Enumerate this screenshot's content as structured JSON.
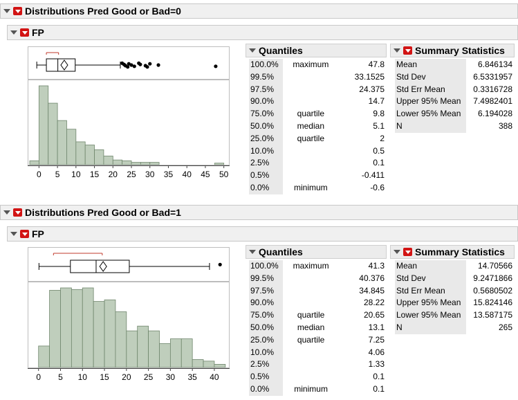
{
  "sections": [
    {
      "header": "Distributions Pred Good or Bad=0",
      "variable": "FP",
      "quantiles_title": "Quantiles",
      "summary_title": "Summary Statistics",
      "quantiles": [
        {
          "pct": "100.0%",
          "label": "maximum",
          "value": "47.8"
        },
        {
          "pct": "99.5%",
          "label": "",
          "value": "33.1525"
        },
        {
          "pct": "97.5%",
          "label": "",
          "value": "24.375"
        },
        {
          "pct": "90.0%",
          "label": "",
          "value": "14.7"
        },
        {
          "pct": "75.0%",
          "label": "quartile",
          "value": "9.8"
        },
        {
          "pct": "50.0%",
          "label": "median",
          "value": "5.1"
        },
        {
          "pct": "25.0%",
          "label": "quartile",
          "value": "2"
        },
        {
          "pct": "10.0%",
          "label": "",
          "value": "0.5"
        },
        {
          "pct": "2.5%",
          "label": "",
          "value": "0.1"
        },
        {
          "pct": "0.5%",
          "label": "",
          "value": "-0.411"
        },
        {
          "pct": "0.0%",
          "label": "minimum",
          "value": "-0.6"
        }
      ],
      "summary": [
        {
          "label": "Mean",
          "value": "6.846134"
        },
        {
          "label": "Std Dev",
          "value": "6.5331957"
        },
        {
          "label": "Std Err Mean",
          "value": "0.3316728"
        },
        {
          "label": "Upper 95% Mean",
          "value": "7.4982401"
        },
        {
          "label": "Lower 95% Mean",
          "value": "6.194028"
        },
        {
          "label": "N",
          "value": "388"
        }
      ],
      "chart_data": {
        "type": "bar",
        "xlim": [
          -2.5,
          51
        ],
        "ticks": [
          0,
          5,
          10,
          15,
          20,
          25,
          30,
          35,
          40,
          45,
          50
        ],
        "bins": [
          {
            "x0": -2.5,
            "x1": 0,
            "h": 0.05
          },
          {
            "x0": 0,
            "x1": 2.5,
            "h": 1.0
          },
          {
            "x0": 2.5,
            "x1": 5,
            "h": 0.78
          },
          {
            "x0": 5,
            "x1": 7.5,
            "h": 0.56
          },
          {
            "x0": 7.5,
            "x1": 10,
            "h": 0.45
          },
          {
            "x0": 10,
            "x1": 12.5,
            "h": 0.29
          },
          {
            "x0": 12.5,
            "x1": 15,
            "h": 0.25
          },
          {
            "x0": 15,
            "x1": 17.5,
            "h": 0.19
          },
          {
            "x0": 17.5,
            "x1": 20,
            "h": 0.11
          },
          {
            "x0": 20,
            "x1": 22.5,
            "h": 0.06
          },
          {
            "x0": 22.5,
            "x1": 25,
            "h": 0.05
          },
          {
            "x0": 25,
            "x1": 27.5,
            "h": 0.03
          },
          {
            "x0": 27.5,
            "x1": 30,
            "h": 0.03
          },
          {
            "x0": 30,
            "x1": 32.5,
            "h": 0.03
          },
          {
            "x0": 47.5,
            "x1": 50,
            "h": 0.02
          }
        ],
        "box": {
          "whisker_lo": -0.6,
          "q1": 2,
          "median": 5.1,
          "q3": 9.8,
          "whisker_hi": 22,
          "mean": 6.846134,
          "bracket": [
            2,
            5.3
          ]
        },
        "outliers": [
          22.5,
          23,
          23.4,
          24,
          24.3,
          25,
          25.8,
          27,
          27.4,
          28.8,
          29.3,
          30,
          32.3,
          47.8
        ]
      }
    },
    {
      "header": "Distributions Pred Good or Bad=1",
      "variable": "FP",
      "quantiles_title": "Quantiles",
      "summary_title": "Summary Statistics",
      "quantiles": [
        {
          "pct": "100.0%",
          "label": "maximum",
          "value": "41.3"
        },
        {
          "pct": "99.5%",
          "label": "",
          "value": "40.376"
        },
        {
          "pct": "97.5%",
          "label": "",
          "value": "34.845"
        },
        {
          "pct": "90.0%",
          "label": "",
          "value": "28.22"
        },
        {
          "pct": "75.0%",
          "label": "quartile",
          "value": "20.65"
        },
        {
          "pct": "50.0%",
          "label": "median",
          "value": "13.1"
        },
        {
          "pct": "25.0%",
          "label": "quartile",
          "value": "7.25"
        },
        {
          "pct": "10.0%",
          "label": "",
          "value": "4.06"
        },
        {
          "pct": "2.5%",
          "label": "",
          "value": "1.33"
        },
        {
          "pct": "0.5%",
          "label": "",
          "value": "0.1"
        },
        {
          "pct": "0.0%",
          "label": "minimum",
          "value": "0.1"
        }
      ],
      "summary": [
        {
          "label": "Mean",
          "value": "14.70566"
        },
        {
          "label": "Std Dev",
          "value": "9.2471866"
        },
        {
          "label": "Std Err Mean",
          "value": "0.5680502"
        },
        {
          "label": "Upper 95% Mean",
          "value": "15.824146"
        },
        {
          "label": "Lower 95% Mean",
          "value": "13.587175"
        },
        {
          "label": "N",
          "value": "265"
        }
      ],
      "chart_data": {
        "type": "bar",
        "xlim": [
          -2,
          43
        ],
        "ticks": [
          0,
          5,
          10,
          15,
          20,
          25,
          30,
          35,
          40
        ],
        "bins": [
          {
            "x0": 0,
            "x1": 2.5,
            "h": 0.27
          },
          {
            "x0": 2.5,
            "x1": 5,
            "h": 0.97
          },
          {
            "x0": 5,
            "x1": 7.5,
            "h": 1.0
          },
          {
            "x0": 7.5,
            "x1": 10,
            "h": 0.98
          },
          {
            "x0": 10,
            "x1": 12.5,
            "h": 1.0
          },
          {
            "x0": 12.5,
            "x1": 15,
            "h": 0.83
          },
          {
            "x0": 15,
            "x1": 17.5,
            "h": 0.85
          },
          {
            "x0": 17.5,
            "x1": 20,
            "h": 0.7
          },
          {
            "x0": 20,
            "x1": 22.5,
            "h": 0.46
          },
          {
            "x0": 22.5,
            "x1": 25,
            "h": 0.52
          },
          {
            "x0": 25,
            "x1": 27.5,
            "h": 0.46
          },
          {
            "x0": 27.5,
            "x1": 30,
            "h": 0.3
          },
          {
            "x0": 30,
            "x1": 32.5,
            "h": 0.36
          },
          {
            "x0": 32.5,
            "x1": 35,
            "h": 0.36
          },
          {
            "x0": 35,
            "x1": 37.5,
            "h": 0.1
          },
          {
            "x0": 37.5,
            "x1": 40,
            "h": 0.08
          },
          {
            "x0": 40,
            "x1": 42.5,
            "h": 0.04
          }
        ],
        "box": {
          "whisker_lo": 0.1,
          "q1": 7.25,
          "median": 13.1,
          "q3": 20.65,
          "whisker_hi": 38.9,
          "mean": 14.70566,
          "bracket": [
            3.4,
            14.5
          ]
        },
        "outliers": [
          41.3
        ]
      }
    }
  ],
  "colors": {
    "bar_fill": "#bfcebc",
    "bar_stroke": "#6f866c",
    "hotspot": "#d21414",
    "bracket": "#c0392b"
  }
}
